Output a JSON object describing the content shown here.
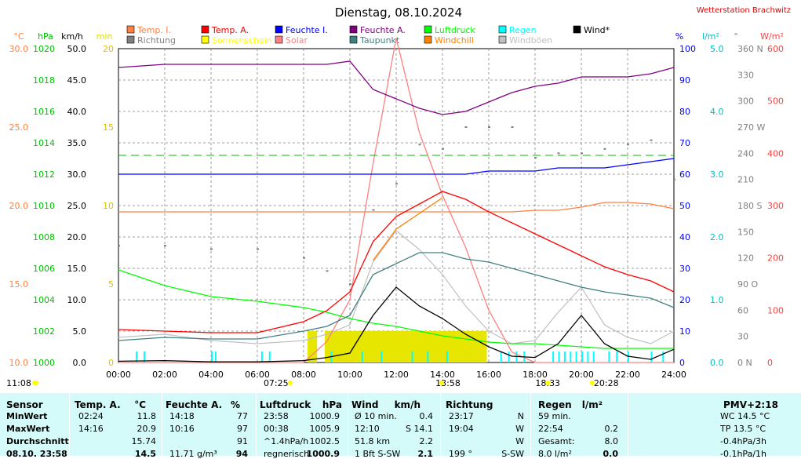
{
  "title": "Dienstag, 08.10.2024",
  "station": "Wetterstation Brachwitz",
  "legend": [
    {
      "label": "Temp. I.",
      "color": "#ff8040"
    },
    {
      "label": "Temp. A.",
      "color": "#ff0000"
    },
    {
      "label": "Feuchte I.",
      "color": "#0000ff"
    },
    {
      "label": "Feuchte A.",
      "color": "#800080"
    },
    {
      "label": "Luftdruck",
      "color": "#00ff00"
    },
    {
      "label": "Regen",
      "color": "#00ffff"
    },
    {
      "label": "Wind*",
      "color": "#000000"
    },
    {
      "label": "Richtung",
      "color": "#808080"
    },
    {
      "label": "Sonnenschein",
      "color": "#ffff00"
    },
    {
      "label": "Solar",
      "color": "#ff8080"
    },
    {
      "label": "Taupunkt",
      "color": "#408080"
    },
    {
      "label": "Windchill",
      "color": "#ff8000"
    },
    {
      "label": "Windböen",
      "color": "#c0c0c0"
    }
  ],
  "axes": {
    "temp": {
      "unit": "°C",
      "color": "#ff8040",
      "ticks": [
        "30.0",
        "25.0",
        "20.0",
        "15.0",
        "10.0"
      ]
    },
    "pressure": {
      "unit": "hPa",
      "color": "#00c000",
      "ticks": [
        "1020",
        "1018",
        "1016",
        "1014",
        "1012",
        "1010",
        "1008",
        "1006",
        "1004",
        "1002",
        "1000"
      ]
    },
    "wind": {
      "unit": "km/h",
      "color": "#000000",
      "ticks": [
        "50.0",
        "45.0",
        "40.0",
        "35.0",
        "30.0",
        "25.0",
        "20.0",
        "15.0",
        "10.0",
        "5.0",
        "0.0"
      ]
    },
    "sun": {
      "unit": "min",
      "color": "#e0e000",
      "ticks": [
        "20",
        "15",
        "10",
        "5",
        "0"
      ]
    },
    "humidity": {
      "unit": "%",
      "color": "#0000ff",
      "ticks": [
        "100",
        "90",
        "80",
        "70",
        "60",
        "50",
        "40",
        "30",
        "20",
        "10",
        "0"
      ]
    },
    "rain": {
      "unit": "l/m²",
      "color": "#00c0c0",
      "ticks": [
        "5.0",
        "4.0",
        "3.0",
        "2.0",
        "1.0",
        "0.0"
      ]
    },
    "direction": {
      "unit": "°",
      "color": "#808080",
      "ticks": [
        "360 N",
        "330",
        "300",
        "270 W",
        "240",
        "210",
        "180 S",
        "150",
        "120",
        "90 O",
        "60",
        "30",
        "0 N"
      ]
    },
    "solar": {
      "unit": "W/m²",
      "color": "#ff4040",
      "ticks": [
        "600",
        "500",
        "400",
        "300",
        "200",
        "100",
        "0"
      ]
    },
    "time_ticks": [
      "00:00",
      "02:00",
      "04:00",
      "06:00",
      "08:00",
      "10:00",
      "12:00",
      "14:00",
      "16:00",
      "18:00",
      "20:00",
      "22:00",
      "24:00"
    ]
  },
  "events": {
    "sunrise": "07:25",
    "noon": "13:58",
    "sunset": "18:33",
    "moonrise": "11:08",
    "moonset": "20:28"
  },
  "chart_data": {
    "type": "line",
    "x": [
      "00:00",
      "02:00",
      "04:00",
      "06:00",
      "08:00",
      "09:00",
      "10:00",
      "11:00",
      "12:00",
      "13:00",
      "14:00",
      "15:00",
      "16:00",
      "17:00",
      "18:00",
      "19:00",
      "20:00",
      "21:00",
      "22:00",
      "23:00",
      "24:00"
    ],
    "series": [
      {
        "name": "Temp. I.",
        "axis": "temp",
        "values": [
          19.6,
          19.6,
          19.6,
          19.6,
          19.6,
          19.6,
          19.6,
          19.6,
          19.6,
          19.6,
          19.6,
          19.6,
          19.6,
          19.6,
          19.7,
          19.7,
          19.9,
          20.2,
          20.2,
          20.1,
          19.8
        ]
      },
      {
        "name": "Temp. A.",
        "axis": "temp",
        "values": [
          12.1,
          12.0,
          11.9,
          11.9,
          12.6,
          13.3,
          14.5,
          17.7,
          19.3,
          20.1,
          20.9,
          20.4,
          19.6,
          18.9,
          18.2,
          17.5,
          16.8,
          16.1,
          15.6,
          15.2,
          14.5
        ]
      },
      {
        "name": "Taupunkt",
        "axis": "temp",
        "values": [
          11.4,
          11.6,
          11.5,
          11.5,
          12.0,
          12.3,
          13.0,
          15.6,
          16.3,
          17.0,
          17.0,
          16.6,
          16.4,
          16.0,
          15.6,
          15.2,
          14.8,
          14.5,
          14.3,
          14.1,
          13.5
        ]
      },
      {
        "name": "Windchill",
        "axis": "temp",
        "values": [
          null,
          null,
          null,
          null,
          null,
          null,
          null,
          16.5,
          18.5,
          19.5,
          20.5,
          null,
          null,
          null,
          null,
          16.0,
          null,
          null,
          null,
          null,
          null
        ]
      },
      {
        "name": "Feuchte A.",
        "axis": "humidity",
        "values": [
          94,
          95,
          95,
          95,
          95,
          95,
          96,
          87,
          84,
          81,
          79,
          80,
          83,
          86,
          88,
          89,
          91,
          91,
          91,
          92,
          94
        ]
      },
      {
        "name": "Feuchte I.",
        "axis": "humidity",
        "values": [
          60,
          60,
          60,
          60,
          60,
          60,
          60,
          60,
          60,
          60,
          60,
          60,
          61,
          61,
          61,
          62,
          62,
          62,
          63,
          64,
          65
        ]
      },
      {
        "name": "Luftdruck",
        "axis": "pressure",
        "values": [
          1005.9,
          1004.9,
          1004.2,
          1003.9,
          1003.5,
          1003.2,
          1002.8,
          1002.5,
          1002.3,
          1002.0,
          1001.7,
          1001.5,
          1001.3,
          1001.2,
          1001.2,
          1001.1,
          1001.0,
          1000.9,
          1000.9,
          1000.9,
          1000.9
        ]
      },
      {
        "name": "Wind*",
        "axis": "wind",
        "values": [
          0.2,
          0.3,
          0.1,
          0.1,
          0.3,
          0.8,
          1.5,
          7.5,
          12.0,
          9.0,
          7.0,
          4.5,
          2.5,
          1.0,
          0.8,
          3.0,
          7.5,
          3.0,
          1.0,
          0.5,
          2.1
        ]
      },
      {
        "name": "Windböen",
        "axis": "wind",
        "values": [
          4.0,
          4.5,
          3.5,
          3.0,
          3.5,
          4.5,
          6.0,
          16.0,
          21.0,
          18.0,
          14.0,
          9.0,
          5.0,
          3.0,
          3.5,
          8.0,
          12.0,
          6.0,
          4.0,
          3.0,
          5.0
        ]
      },
      {
        "name": "Solar",
        "axis": "solar",
        "values": [
          0,
          0,
          0,
          0,
          0,
          40,
          120,
          380,
          620,
          440,
          320,
          220,
          100,
          20,
          0,
          0,
          0,
          0,
          0,
          0,
          0
        ]
      },
      {
        "name": "Richtung",
        "axis": "direction",
        "values": [
          134,
          134,
          130,
          130,
          120,
          105,
          90,
          175,
          205,
          250,
          245,
          270,
          270,
          270,
          235,
          240,
          240,
          245,
          250,
          255,
          210
        ]
      }
    ],
    "ylim": {
      "temp": [
        10,
        30
      ],
      "pressure": [
        1000,
        1020
      ],
      "wind": [
        0,
        50
      ],
      "humidity": [
        0,
        100
      ],
      "rain": [
        0,
        5
      ],
      "direction": [
        0,
        360
      ],
      "solar": [
        0,
        600
      ],
      "sun": [
        0,
        20
      ]
    }
  },
  "table": {
    "headers": [
      "Sensor",
      "Temp. A.",
      "°C",
      "Feuchte A.",
      "%",
      "Luftdruck",
      "hPa",
      "Wind",
      "km/h",
      "Richtung",
      "Regen",
      "l/m²",
      "PMV+2:18"
    ],
    "rows": [
      [
        "MinWert",
        "02:24",
        "11.8",
        "14:18",
        "77",
        "23:58",
        "1000.9",
        "Ø 10 min.",
        "0.4",
        "23:17",
        "N",
        "59 min.",
        "",
        "WC 14.5 °C"
      ],
      [
        "MaxWert",
        "14:16",
        "20.9",
        "10:16",
        "97",
        "00:38",
        "1005.9",
        "12:10",
        "S 14.1",
        "19:04",
        "W",
        "22:54",
        "0.2",
        "TP 13.5 °C"
      ],
      [
        "Durchschnitt",
        "",
        "15.74",
        "",
        "91",
        "^1.4hPa/h",
        "1002.5",
        "51.8 km",
        "2.2",
        "",
        "W",
        "Gesamt:",
        "8.0",
        "-0.4hPa/3h"
      ],
      [
        "08.10. 23:58",
        "",
        "14.5",
        "11.71 g/m³",
        "94",
        "regnerisch",
        "1000.9",
        "1 Bft S-SW",
        "2.1",
        "199 °",
        "S-SW",
        "8.0 l/m²",
        "0.0",
        "-0.1hPa/1h"
      ]
    ]
  }
}
